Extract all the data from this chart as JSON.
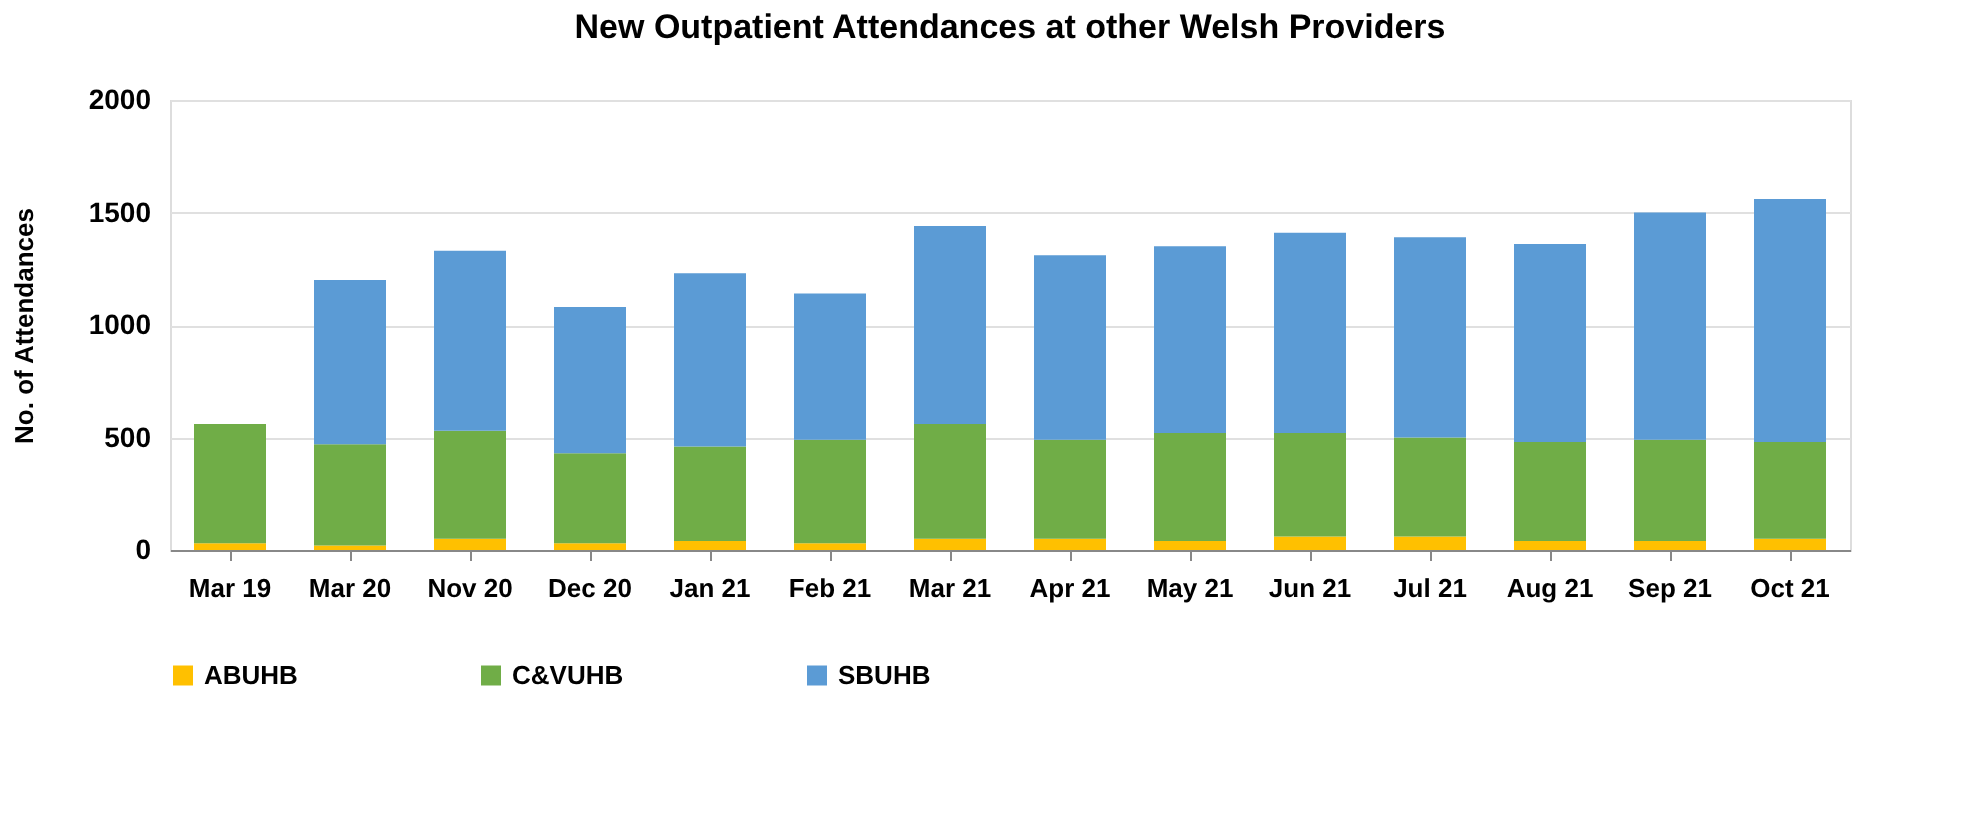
{
  "chart_data": {
    "type": "bar",
    "title": "New Outpatient Attendances at other Welsh Providers",
    "ylabel": "No. of Attendances",
    "categories": [
      "Mar 19",
      "Mar 20",
      "Nov 20",
      "Dec 20",
      "Jan 21",
      "Feb 21",
      "Mar 21",
      "Apr 21",
      "May 21",
      "Jun 21",
      "Jul 21",
      "Aug 21",
      "Sep 21",
      "Oct 21"
    ],
    "stacked": true,
    "series": [
      {
        "name": "ABUHB",
        "color": "#ffc000",
        "values": [
          30,
          20,
          50,
          30,
          40,
          30,
          50,
          50,
          40,
          60,
          60,
          40,
          40,
          50
        ]
      },
      {
        "name": "C&VUHB",
        "color": "#70ad47",
        "values": [
          530,
          450,
          480,
          400,
          420,
          460,
          510,
          440,
          480,
          460,
          440,
          440,
          450,
          430
        ]
      },
      {
        "name": "SBUHB",
        "color": "#5b9bd5",
        "values": [
          0,
          730,
          800,
          650,
          770,
          650,
          880,
          820,
          830,
          890,
          890,
          880,
          1010,
          1080
        ]
      }
    ],
    "ylim": [
      0,
      2000
    ],
    "yticks": [
      0,
      500,
      1000,
      1500,
      2000
    ],
    "grid": "y",
    "legend": "bottom"
  }
}
